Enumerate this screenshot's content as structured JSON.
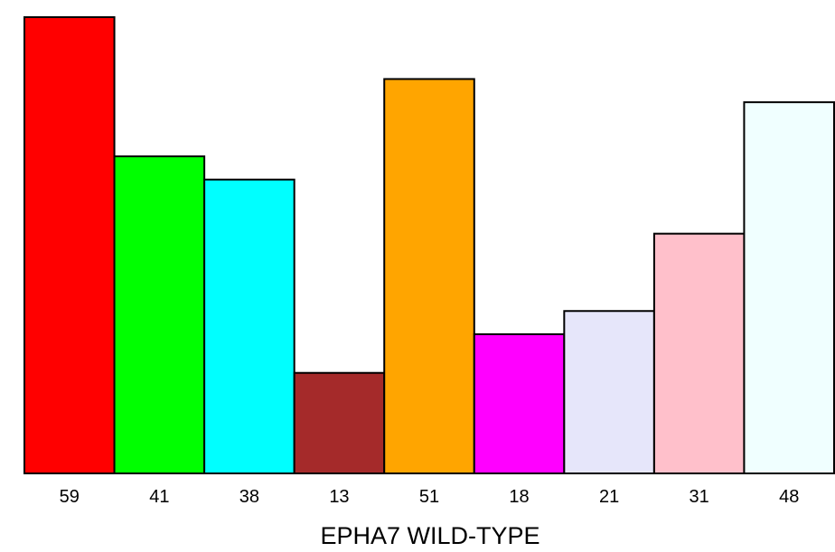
{
  "chart_data": {
    "type": "bar",
    "title": "",
    "xlabel": "EPHA7 WILD-TYPE",
    "ylabel": "",
    "categories": [
      "59",
      "41",
      "38",
      "13",
      "51",
      "18",
      "21",
      "31",
      "48"
    ],
    "values": [
      59,
      41,
      38,
      13,
      51,
      18,
      21,
      31,
      48
    ],
    "colors": [
      "#ff0000",
      "#00ff00",
      "#00ffff",
      "#a52a2a",
      "#ffa500",
      "#ff00ff",
      "#e6e6fa",
      "#ffc0cb",
      "#f0ffff"
    ],
    "ylim": [
      0,
      59
    ],
    "grid": false,
    "legend": "none"
  }
}
